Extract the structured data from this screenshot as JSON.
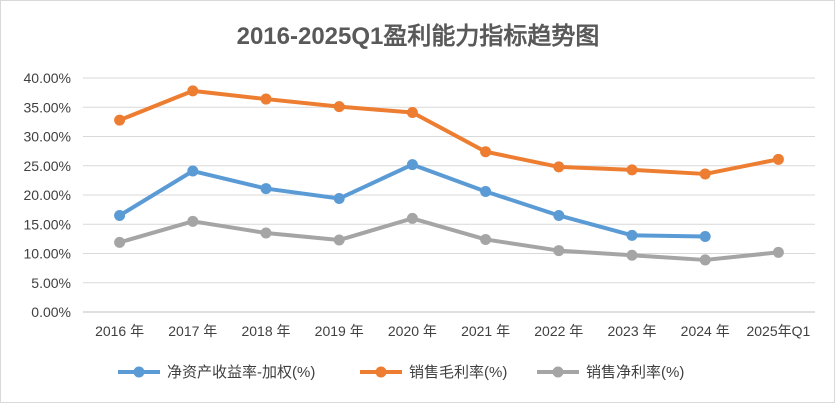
{
  "chart_data": {
    "type": "line",
    "title": "2016-2025Q1盈利能力指标趋势图",
    "categories": [
      "2016 年",
      "2017 年",
      "2018 年",
      "2019 年",
      "2020 年",
      "2021 年",
      "2022 年",
      "2023 年",
      "2024 年",
      "2025年Q1"
    ],
    "ylim": [
      0,
      40
    ],
    "yticks": [
      "0.00%",
      "5.00%",
      "10.00%",
      "15.00%",
      "20.00%",
      "25.00%",
      "30.00%",
      "35.00%",
      "40.00%"
    ],
    "grid": true,
    "legend_position": "bottom",
    "series": [
      {
        "name": "净资产收益率-加权(%)",
        "color": "#5b9bd5",
        "values": [
          16.5,
          24.1,
          21.1,
          19.4,
          25.2,
          20.6,
          16.5,
          13.1,
          12.9,
          null
        ]
      },
      {
        "name": "销售毛利率(%)",
        "color": "#ed7d31",
        "values": [
          32.8,
          37.8,
          36.4,
          35.1,
          34.1,
          27.4,
          24.8,
          24.3,
          23.6,
          26.1
        ]
      },
      {
        "name": "销售净利率(%)",
        "color": "#a5a5a5",
        "values": [
          11.9,
          15.5,
          13.5,
          12.3,
          16.0,
          12.4,
          10.5,
          9.7,
          8.9,
          10.2
        ]
      }
    ]
  }
}
